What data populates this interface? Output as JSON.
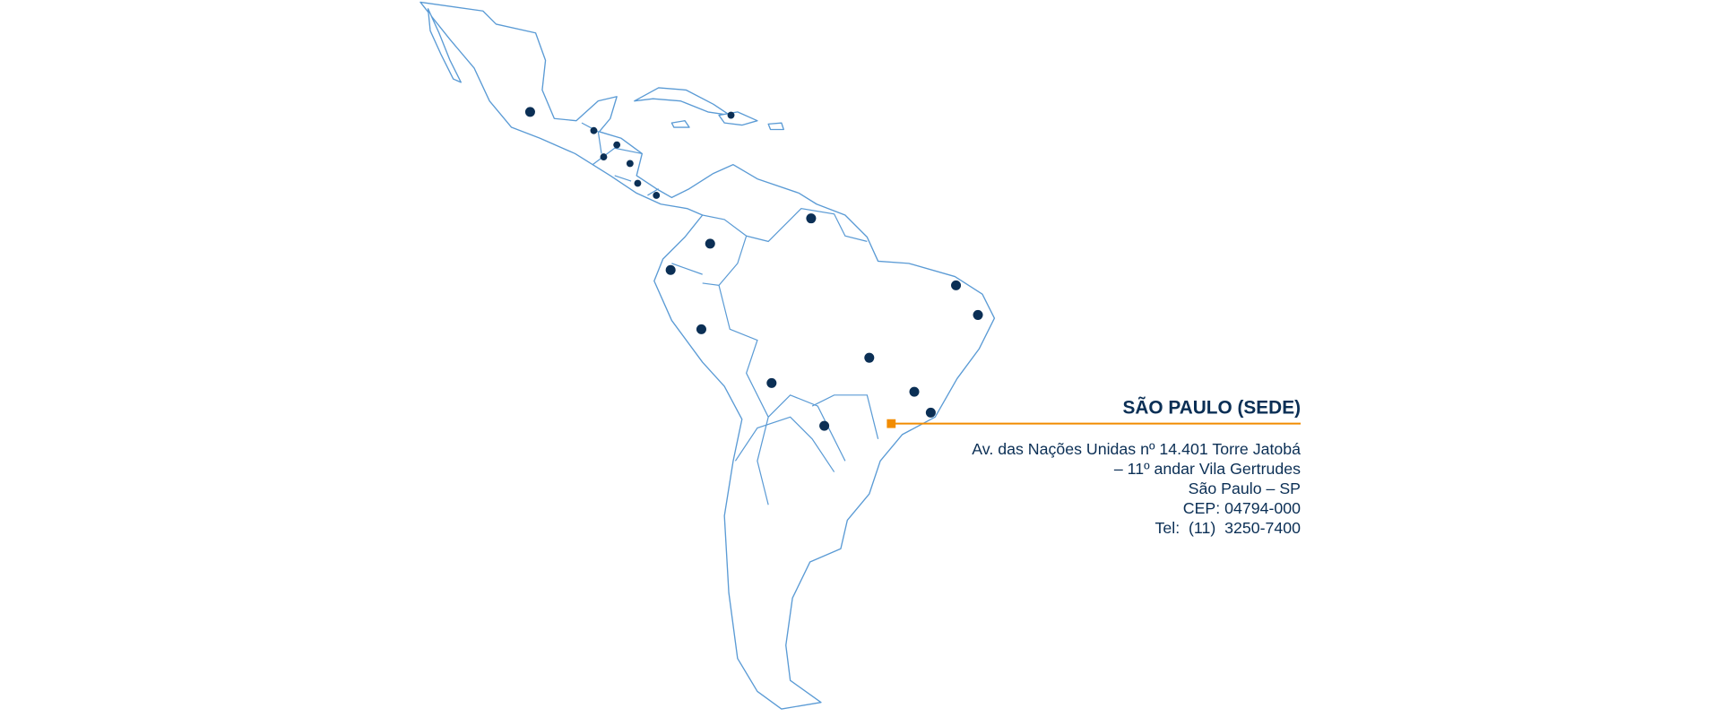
{
  "colors": {
    "map_outline": "#5b9bd5",
    "office_dot": "#0b2f55",
    "headquarters_marker": "#f28c00",
    "text": "#0b2f55"
  },
  "map": {
    "region": "Latin America",
    "office_marker_count": 19
  },
  "headquarters": {
    "title": "SÃO PAULO (SEDE)",
    "address_lines": [
      "Av. das Nações Unidas nº 14.401 Torre Jatobá",
      "– 11º andar Vila Gertrudes",
      "São Paulo – SP",
      "CEP: 04794-000",
      "Tel:  (11)  3250-7400"
    ]
  }
}
